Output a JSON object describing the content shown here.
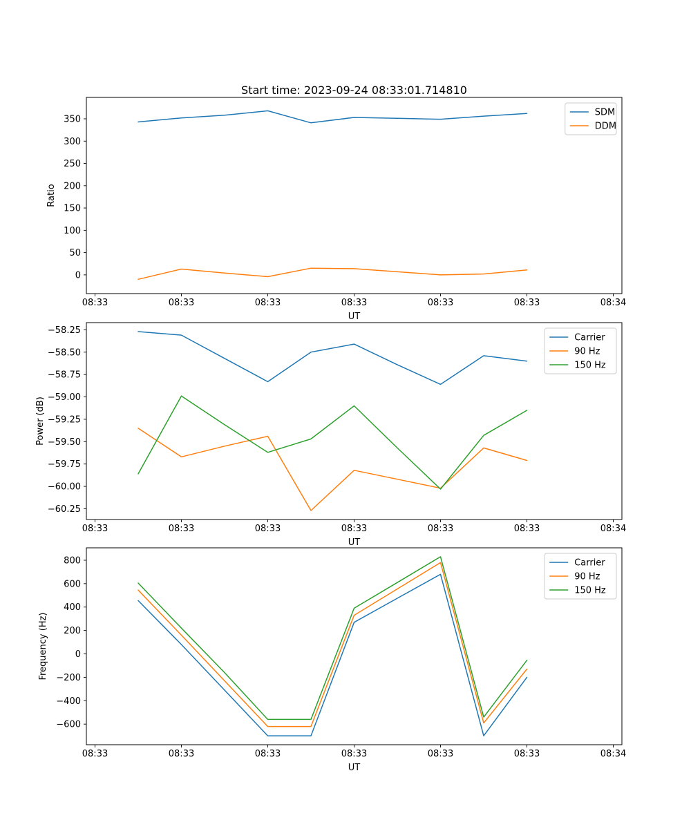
{
  "figure": {
    "title": "Start time: 2023-09-24 08:33:01.714810"
  },
  "colors": {
    "blue": "#1f77b4",
    "orange": "#ff7f0e",
    "green": "#2ca02c",
    "axes": "#000000",
    "legend_border": "#cccccc",
    "background": "#ffffff"
  },
  "chart_data": [
    {
      "type": "line",
      "title": "",
      "xlabel": "UT",
      "ylabel": "Ratio",
      "x_unit": "seconds after 08:33:00",
      "x_seconds": [
        5,
        10,
        15,
        20,
        25,
        30,
        35,
        40,
        45,
        50
      ],
      "xlim": [
        -1,
        61
      ],
      "xticks": [
        0,
        10,
        20,
        30,
        40,
        50,
        60
      ],
      "xtick_labels": [
        "08:33",
        "08:33",
        "08:33",
        "08:33",
        "08:33",
        "08:33",
        "08:34"
      ],
      "ylim": [
        -42,
        398
      ],
      "yticks": [
        0,
        50,
        100,
        150,
        200,
        250,
        300,
        350
      ],
      "ytick_decimals": 0,
      "grid": false,
      "legend_loc": "upper right",
      "series": [
        {
          "name": "SDM",
          "color": "#1f77b4",
          "values": [
            343,
            352,
            358,
            368,
            341,
            353,
            351,
            349,
            356,
            362
          ]
        },
        {
          "name": "DDM",
          "color": "#ff7f0e",
          "values": [
            -10,
            13,
            4,
            -4,
            15,
            14,
            7,
            0,
            2,
            11
          ]
        }
      ]
    },
    {
      "type": "line",
      "title": "",
      "xlabel": "UT",
      "ylabel": "Power (dB)",
      "x_unit": "seconds after 08:33:00",
      "x_seconds": [
        5,
        10,
        15,
        20,
        25,
        30,
        35,
        40,
        45,
        50
      ],
      "xlim": [
        -1,
        61
      ],
      "xticks": [
        0,
        10,
        20,
        30,
        40,
        50,
        60
      ],
      "xtick_labels": [
        "08:33",
        "08:33",
        "08:33",
        "08:33",
        "08:33",
        "08:33",
        "08:34"
      ],
      "ylim": [
        -60.37,
        -58.17
      ],
      "yticks": [
        -60.25,
        -60.0,
        -59.75,
        -59.5,
        -59.25,
        -59.0,
        -58.75,
        -58.5,
        -58.25
      ],
      "ytick_decimals": 2,
      "grid": false,
      "legend_loc": "upper right",
      "series": [
        {
          "name": "Carrier",
          "color": "#1f77b4",
          "values": [
            -58.27,
            -58.31,
            -58.57,
            -58.83,
            -58.5,
            -58.41,
            -58.64,
            -58.86,
            -58.54,
            -58.6
          ]
        },
        {
          "name": "90 Hz",
          "color": "#ff7f0e",
          "values": [
            -59.35,
            -59.67,
            -59.55,
            -59.44,
            -60.27,
            -59.82,
            -59.92,
            -60.02,
            -59.57,
            -59.71
          ]
        },
        {
          "name": "150 Hz",
          "color": "#2ca02c",
          "values": [
            -59.86,
            -58.99,
            -59.31,
            -59.62,
            -59.47,
            -59.1,
            -59.57,
            -60.03,
            -59.43,
            -59.15
          ]
        }
      ]
    },
    {
      "type": "line",
      "title": "",
      "xlabel": "UT",
      "ylabel": "Frequency (Hz)",
      "x_unit": "seconds after 08:33:00",
      "x_seconds": [
        5,
        10,
        15,
        20,
        25,
        30,
        35,
        40,
        45,
        50
      ],
      "xlim": [
        -1,
        61
      ],
      "xticks": [
        0,
        10,
        20,
        30,
        40,
        50,
        60
      ],
      "xtick_labels": [
        "08:33",
        "08:33",
        "08:33",
        "08:33",
        "08:33",
        "08:33",
        "08:34"
      ],
      "ylim": [
        -776,
        906
      ],
      "yticks": [
        -600,
        -400,
        -200,
        0,
        200,
        400,
        600,
        800
      ],
      "ytick_decimals": 0,
      "grid": false,
      "legend_loc": "upper right",
      "series": [
        {
          "name": "Carrier",
          "color": "#1f77b4",
          "values": [
            455,
            80,
            -310,
            -700,
            -700,
            270,
            475,
            680,
            -700,
            -200
          ]
        },
        {
          "name": "90 Hz",
          "color": "#ff7f0e",
          "values": [
            545,
            160,
            -230,
            -620,
            -620,
            330,
            555,
            780,
            -590,
            -130
          ]
        },
        {
          "name": "150 Hz",
          "color": "#2ca02c",
          "values": [
            605,
            220,
            -160,
            -560,
            -560,
            390,
            610,
            830,
            -540,
            -55
          ]
        }
      ]
    }
  ]
}
